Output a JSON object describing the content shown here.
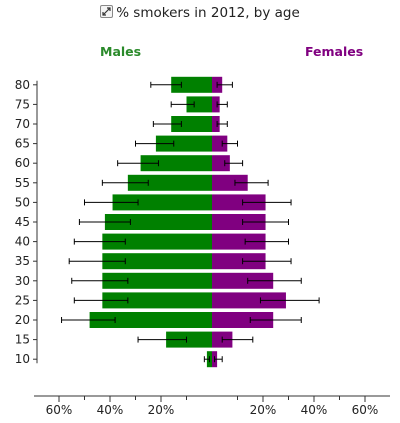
{
  "header": {
    "title": "% smokers in 2012, by age",
    "expand_icon": "expand-arrows-icon"
  },
  "labels": {
    "males": "Males",
    "females": "Females"
  },
  "colors": {
    "males": "#008000",
    "females": "#800080",
    "axis": "#333333",
    "error_bar": "#000000"
  },
  "chart_data": {
    "type": "bar",
    "orientation": "horizontal",
    "layout": "population-pyramid",
    "title": "% smokers in 2012, by age",
    "categories": [
      10,
      15,
      20,
      25,
      30,
      35,
      40,
      45,
      50,
      55,
      60,
      65,
      70,
      75,
      80
    ],
    "y_ticks": [
      "10",
      "15",
      "20",
      "25",
      "30",
      "35",
      "40",
      "45",
      "50",
      "55",
      "60",
      "65",
      "70",
      "75",
      "80"
    ],
    "x_ticks": [
      "60%",
      "40%",
      "20%",
      "20%",
      "40%",
      "60%"
    ],
    "x_tick_values": [
      -60,
      -40,
      -20,
      20,
      40,
      60
    ],
    "xlim": [
      -70,
      70
    ],
    "series": [
      {
        "name": "Males",
        "values": [
          2,
          18,
          48,
          43,
          43,
          43,
          43,
          42,
          39,
          33,
          28,
          22,
          16,
          10,
          16
        ],
        "error_low": [
          1,
          10,
          38,
          33,
          33,
          34,
          34,
          32,
          29,
          25,
          21,
          15,
          12,
          7,
          12
        ],
        "error_high": [
          3,
          29,
          59,
          54,
          55,
          56,
          54,
          52,
          50,
          43,
          37,
          30,
          23,
          16,
          24
        ]
      },
      {
        "name": "Females",
        "values": [
          2,
          8,
          24,
          29,
          24,
          21,
          21,
          21,
          21,
          14,
          7,
          6,
          3,
          3,
          4
        ],
        "error_low": [
          1,
          4,
          15,
          19,
          14,
          12,
          13,
          12,
          12,
          9,
          5,
          4,
          2,
          2,
          2
        ],
        "error_high": [
          4,
          16,
          35,
          42,
          35,
          31,
          30,
          30,
          31,
          22,
          12,
          10,
          6,
          6,
          8
        ]
      }
    ]
  }
}
